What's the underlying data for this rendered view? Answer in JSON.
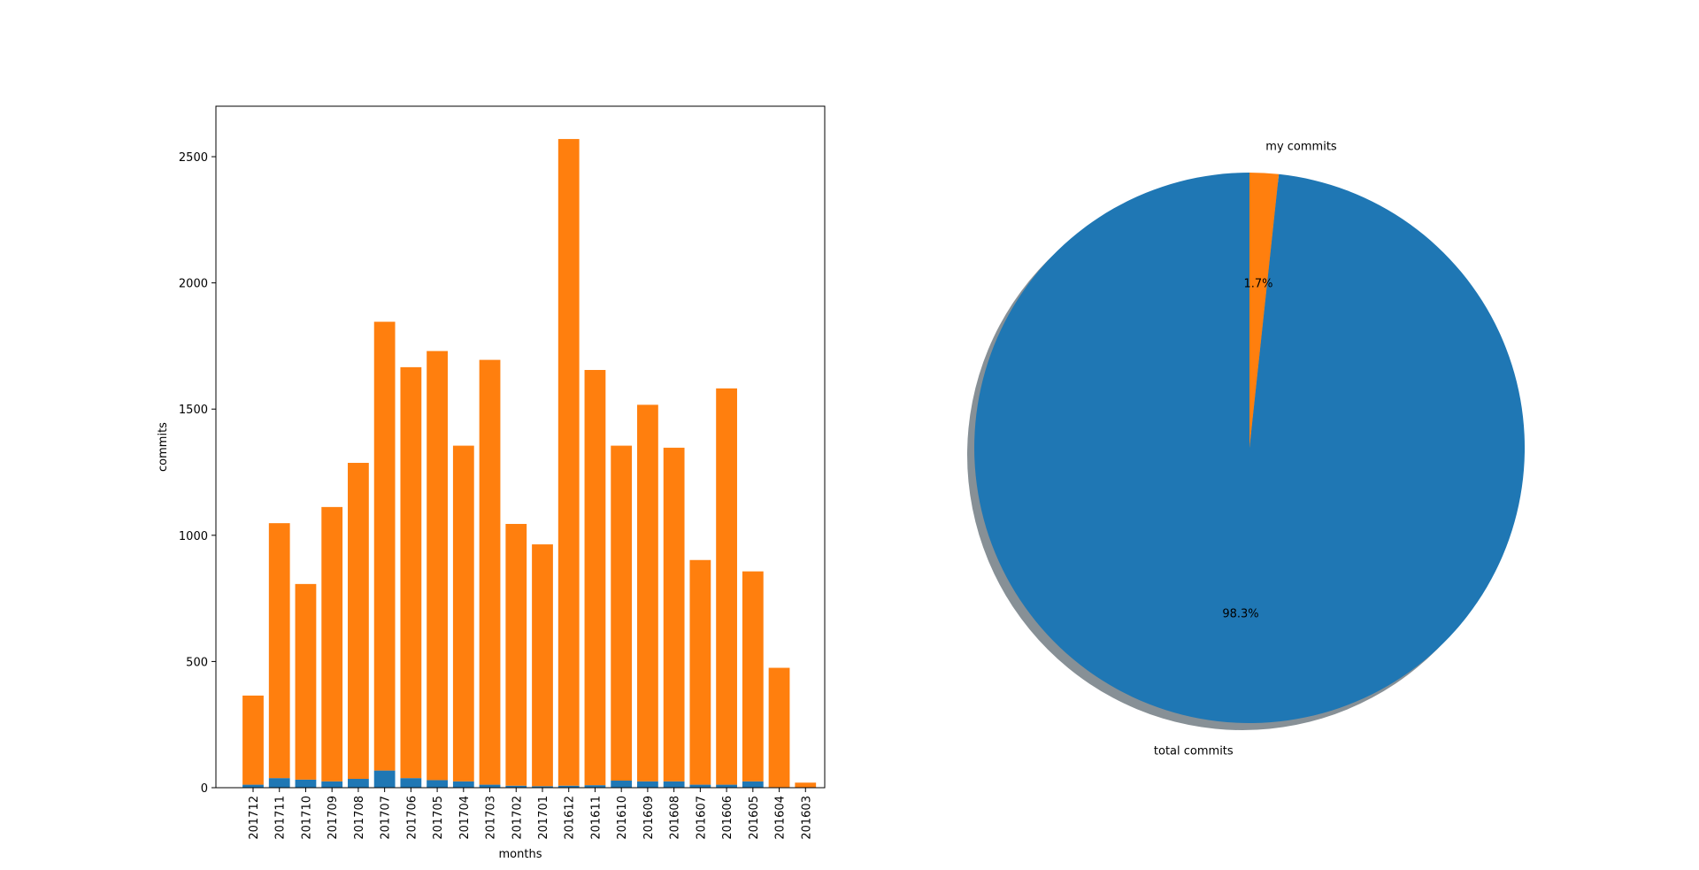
{
  "chart_data": [
    {
      "type": "bar",
      "stacked": true,
      "xlabel": "months",
      "ylabel": "commits",
      "ylim": [
        0,
        2700
      ],
      "yticks": [
        0,
        500,
        1000,
        1500,
        2000,
        2500
      ],
      "categories": [
        "201712",
        "201711",
        "201710",
        "201709",
        "201708",
        "201707",
        "201706",
        "201705",
        "201704",
        "201703",
        "201702",
        "201701",
        "201612",
        "201611",
        "201610",
        "201609",
        "201608",
        "201607",
        "201606",
        "201605",
        "201604",
        "201603"
      ],
      "series": [
        {
          "color": "#1f77b4",
          "values": [
            12,
            38,
            32,
            25,
            35,
            68,
            38,
            30,
            25,
            12,
            8,
            6,
            8,
            10,
            28,
            25,
            25,
            12,
            12,
            25,
            2,
            0
          ]
        },
        {
          "color": "#ff7f0e",
          "values": [
            353,
            1010,
            775,
            1087,
            1252,
            1778,
            1628,
            1700,
            1330,
            1683,
            1037,
            958,
            2562,
            1645,
            1327,
            1492,
            1322,
            890,
            1570,
            832,
            473,
            20
          ]
        }
      ]
    },
    {
      "type": "pie",
      "shadow": true,
      "startangle": 90,
      "slices": [
        {
          "label": "total commits",
          "pct_label": "98.3%",
          "value": 98.3,
          "color": "#1f77b4"
        },
        {
          "label": "my commits",
          "pct_label": "1.7%",
          "value": 1.7,
          "color": "#ff7f0e"
        }
      ]
    }
  ]
}
